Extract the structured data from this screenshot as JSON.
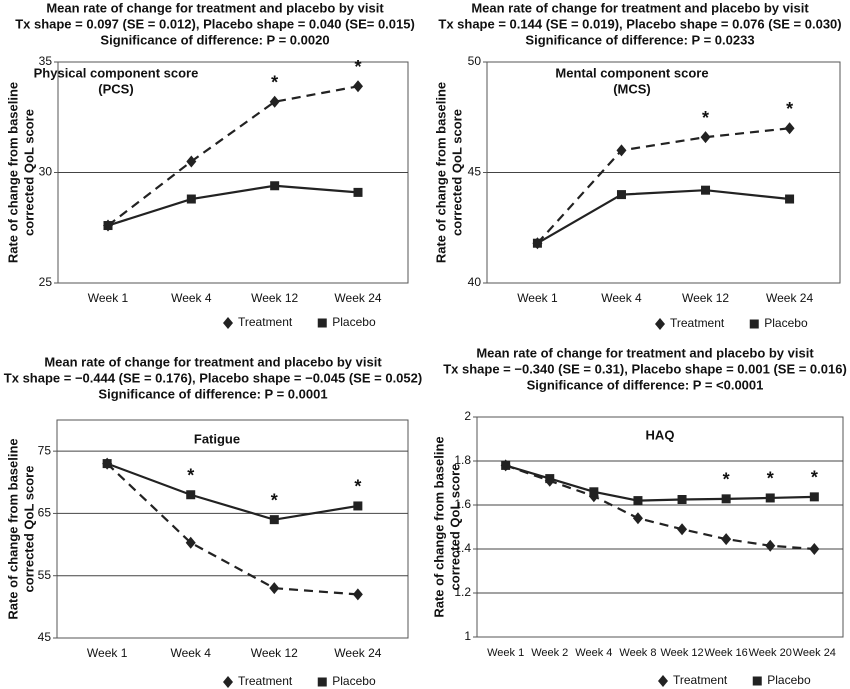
{
  "chart_data": [
    {
      "type": "line",
      "title": [
        "Mean rate of change for treatment and placebo by visit",
        "Tx shape = 0.097 (SE = 0.012), Placebo shape = 0.040 (SE= 0.015)",
        "Significance of difference: P = 0.0020"
      ],
      "panel_label": [
        "Physical component score",
        "(PCS)"
      ],
      "ylabel": [
        "Rate of change from baseline",
        "corrected QoL score"
      ],
      "categories": [
        "Week 1",
        "Week 4",
        "Week 12",
        "Week 24"
      ],
      "series": [
        {
          "name": "Treatment",
          "color": "#222222",
          "line_style": "dashed",
          "marker": "diamond",
          "values": [
            27.6,
            30.5,
            33.2,
            33.9
          ]
        },
        {
          "name": "Placebo",
          "color": "#222222",
          "line_style": "solid",
          "marker": "square",
          "values": [
            27.6,
            28.8,
            29.4,
            29.1
          ]
        }
      ],
      "significance_marker": "*",
      "significant": [
        "Week 12",
        "Week 24"
      ],
      "ylim": [
        25,
        35
      ],
      "yticks": [
        25,
        30,
        35
      ],
      "grid": true,
      "legend": "bottom-right"
    },
    {
      "type": "line",
      "title": [
        "Mean rate of change for treatment and placebo by visit",
        "Tx shape = 0.144 (SE = 0.019), Placebo shape = 0.076 (SE = 0.030)",
        "Significance of difference: P = 0.0233"
      ],
      "panel_label": [
        "Mental component score",
        "(MCS)"
      ],
      "ylabel": [
        "Rate of change from baseline",
        "corrected QoL score"
      ],
      "categories": [
        "Week 1",
        "Week 4",
        "Week 12",
        "Week 24"
      ],
      "series": [
        {
          "name": "Treatment",
          "color": "#222222",
          "line_style": "dashed",
          "marker": "diamond",
          "values": [
            41.8,
            46.0,
            46.6,
            47.0
          ]
        },
        {
          "name": "Placebo",
          "color": "#222222",
          "line_style": "solid",
          "marker": "square",
          "values": [
            41.8,
            44.0,
            44.2,
            43.8
          ]
        }
      ],
      "significance_marker": "*",
      "significant": [
        "Week 12",
        "Week 24"
      ],
      "ylim": [
        40,
        50
      ],
      "yticks": [
        40,
        45,
        50
      ],
      "grid": true,
      "legend": "bottom-right"
    },
    {
      "type": "line",
      "title": [
        "Mean rate of change for treatment and placebo by visit",
        "Tx shape = −0.444 (SE = 0.176), Placebo shape = −0.045 (SE = 0.052)",
        "Significance of difference: P = 0.0001"
      ],
      "panel_label": [
        "Fatigue"
      ],
      "ylabel": [
        "Rate of change from baseline",
        "corrected QoL score"
      ],
      "categories": [
        "Week 1",
        "Week 4",
        "Week 12",
        "Week 24"
      ],
      "series": [
        {
          "name": "Treatment",
          "color": "#222222",
          "line_style": "dashed",
          "marker": "diamond",
          "values": [
            73,
            60.3,
            53,
            52
          ]
        },
        {
          "name": "Placebo",
          "color": "#222222",
          "line_style": "solid",
          "marker": "square",
          "values": [
            73,
            68,
            64,
            66.2
          ]
        }
      ],
      "significance_marker": "*",
      "significant": [
        "Week 4",
        "Week 12",
        "Week 24"
      ],
      "ylim": [
        45,
        80
      ],
      "yticks": [
        45,
        55,
        65,
        75
      ],
      "grid": true,
      "legend": "bottom-right"
    },
    {
      "type": "line",
      "title": [
        "Mean rate of change for treatment and placebo by visit",
        "Tx shape = −0.340 (SE = 0.31), Placebo shape = 0.001 (SE = 0.016)",
        "Significance of difference: P = <0.0001"
      ],
      "panel_label": [
        "HAQ"
      ],
      "ylabel": [
        "Rate of change from baseline",
        "corrected QoL score"
      ],
      "categories": [
        "Week 1",
        "Week 2",
        "Week 4",
        "Week 8",
        "Week 12",
        "Week 16",
        "Week 20",
        "Week 24"
      ],
      "series": [
        {
          "name": "Treatment",
          "color": "#222222",
          "line_style": "dashed",
          "marker": "diamond",
          "values": [
            1.78,
            1.71,
            1.64,
            1.54,
            1.49,
            1.445,
            1.415,
            1.4
          ]
        },
        {
          "name": "Placebo",
          "color": "#222222",
          "line_style": "solid",
          "marker": "square",
          "values": [
            1.78,
            1.72,
            1.66,
            1.62,
            1.625,
            1.628,
            1.632,
            1.637
          ]
        }
      ],
      "significance_marker": "*",
      "significant": [
        "Week 16",
        "Week 20",
        "Week 24"
      ],
      "ylim": [
        1,
        2
      ],
      "yticks": [
        1,
        1.2,
        1.4,
        1.6,
        1.8,
        2
      ],
      "grid": true,
      "legend": "bottom-right"
    }
  ]
}
